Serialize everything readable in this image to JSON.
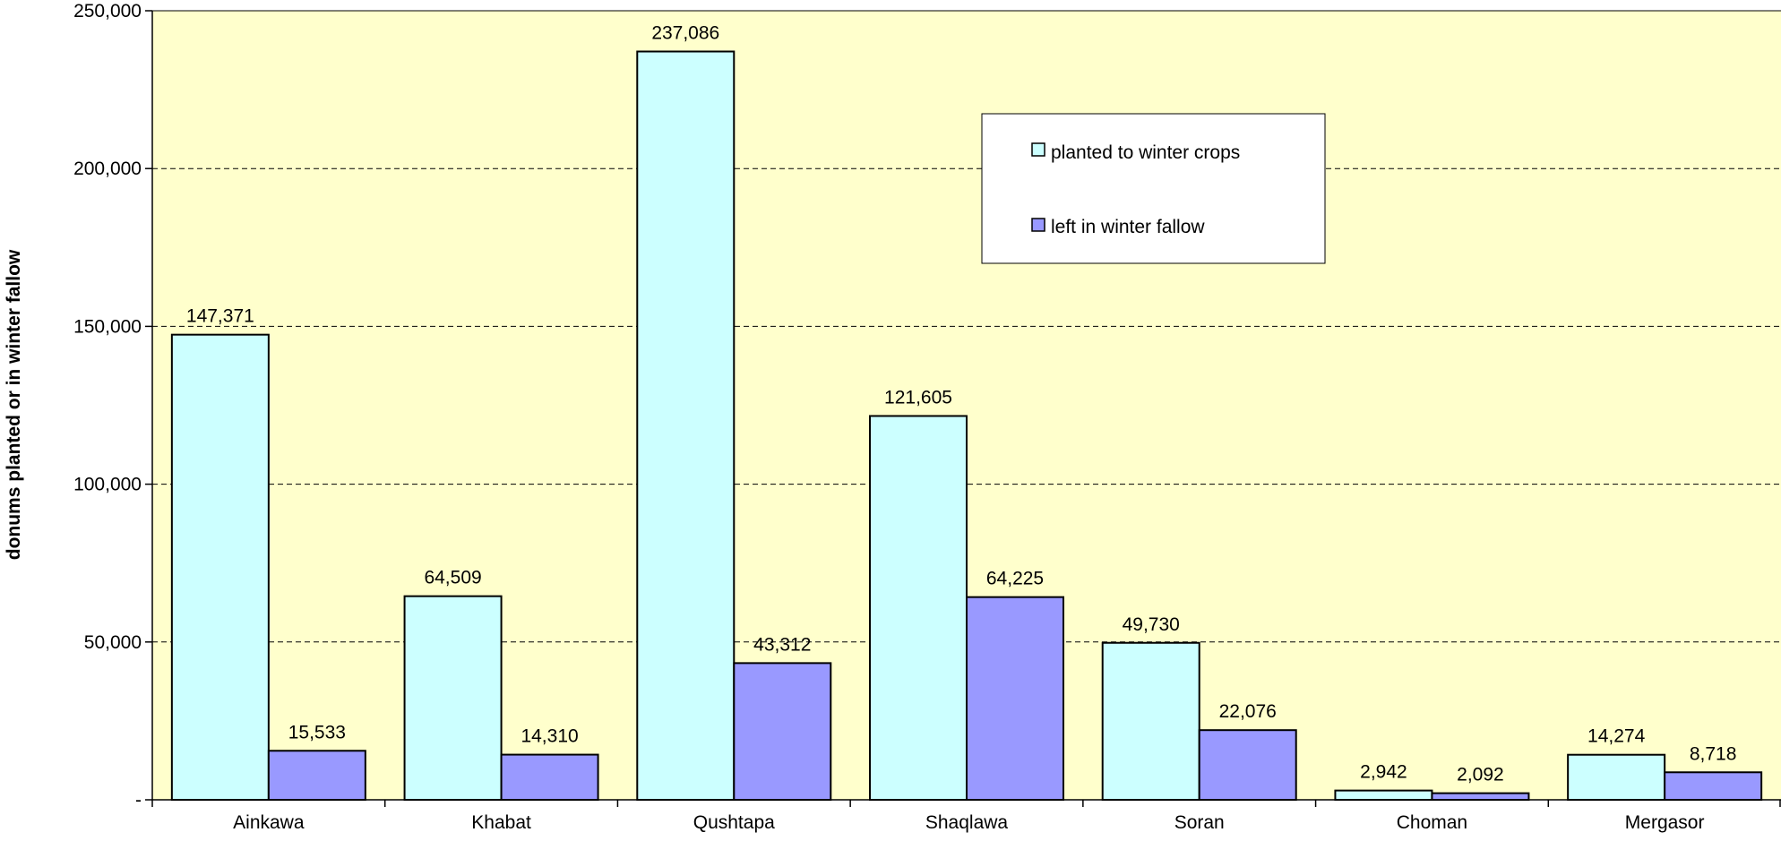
{
  "chart_data": {
    "type": "bar",
    "title": "",
    "xlabel": "",
    "ylabel": "donums planted or in winter fallow",
    "categories": [
      "Ainkawa",
      "Khabat",
      "Qushtapa",
      "Shaqlawa",
      "Soran",
      "Choman",
      "Mergasor"
    ],
    "series": [
      {
        "name": "planted to winter crops",
        "color": "#ccffff",
        "values": [
          147371,
          64509,
          237086,
          121605,
          49730,
          2942,
          14274
        ]
      },
      {
        "name": "left in winter fallow",
        "color": "#9999ff",
        "values": [
          15533,
          14310,
          43312,
          64225,
          22076,
          2092,
          8718
        ]
      }
    ],
    "data_labels": [
      [
        "147,371",
        "64,509",
        "237,086",
        "121,605",
        "49,730",
        "2,942",
        "14,274"
      ],
      [
        "15,533",
        "14,310",
        "43,312",
        "64,225",
        "22,076",
        "2,092",
        "8,718"
      ]
    ],
    "ylim": [
      0,
      250000
    ],
    "yticks": [
      0,
      50000,
      100000,
      150000,
      200000,
      250000
    ],
    "ytick_labels": [
      "-",
      "50,000",
      "100,000",
      "150,000",
      "200,000",
      "250,000"
    ],
    "grid": "horizontal dashed",
    "legend_position": "top-right",
    "plot_background": "#ffffcc"
  }
}
